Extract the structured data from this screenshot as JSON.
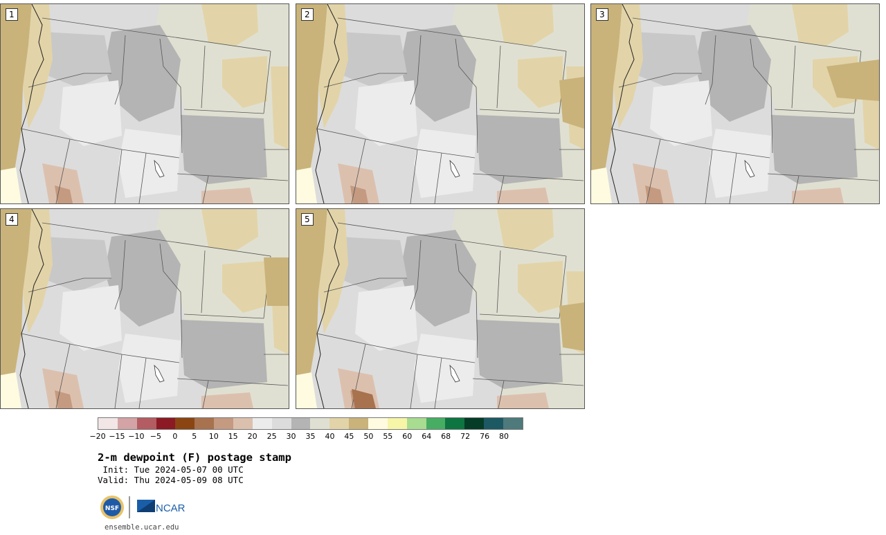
{
  "panels": [
    {
      "label": "1"
    },
    {
      "label": "2"
    },
    {
      "label": "3"
    },
    {
      "label": "4"
    },
    {
      "label": "5"
    }
  ],
  "colorbar": {
    "colors": [
      "#f3e6e6",
      "#d4a3a6",
      "#b35c62",
      "#8b1a25",
      "#8b4513",
      "#a8724f",
      "#c49a80",
      "#dcc0ae",
      "#ececec",
      "#dcdcdc",
      "#b4b4b4",
      "#e0e0d2",
      "#e2d4a8",
      "#c9b37a",
      "#fffbe0",
      "#f7f5a7",
      "#a8dc90",
      "#47ad63",
      "#0e7541",
      "#053c28",
      "#1d5962",
      "#4e7a7b"
    ],
    "ticks": [
      "−20",
      "−15",
      "−10",
      "−5",
      "0",
      "5",
      "10",
      "15",
      "20",
      "25",
      "30",
      "35",
      "40",
      "45",
      "50",
      "55",
      "60",
      "64",
      "68",
      "72",
      "76",
      "80"
    ]
  },
  "title": "2-m dewpoint (F) postage stamp",
  "init_text": " Init: Tue 2024-05-07 00 UTC",
  "valid_text": "Valid: Thu 2024-05-09 08 UTC",
  "logos": {
    "nsf": "NSF",
    "ncar": "NCAR"
  },
  "url": "ensemble.ucar.edu",
  "map_colors": {
    "ocean": "#c9b37a",
    "dry": "#e2d4a8",
    "mid": "#e0e0d2",
    "gray": "#b4b4b4",
    "light": "#dcdcdc",
    "brown": "#c49a80",
    "low": "#fffbe0"
  }
}
